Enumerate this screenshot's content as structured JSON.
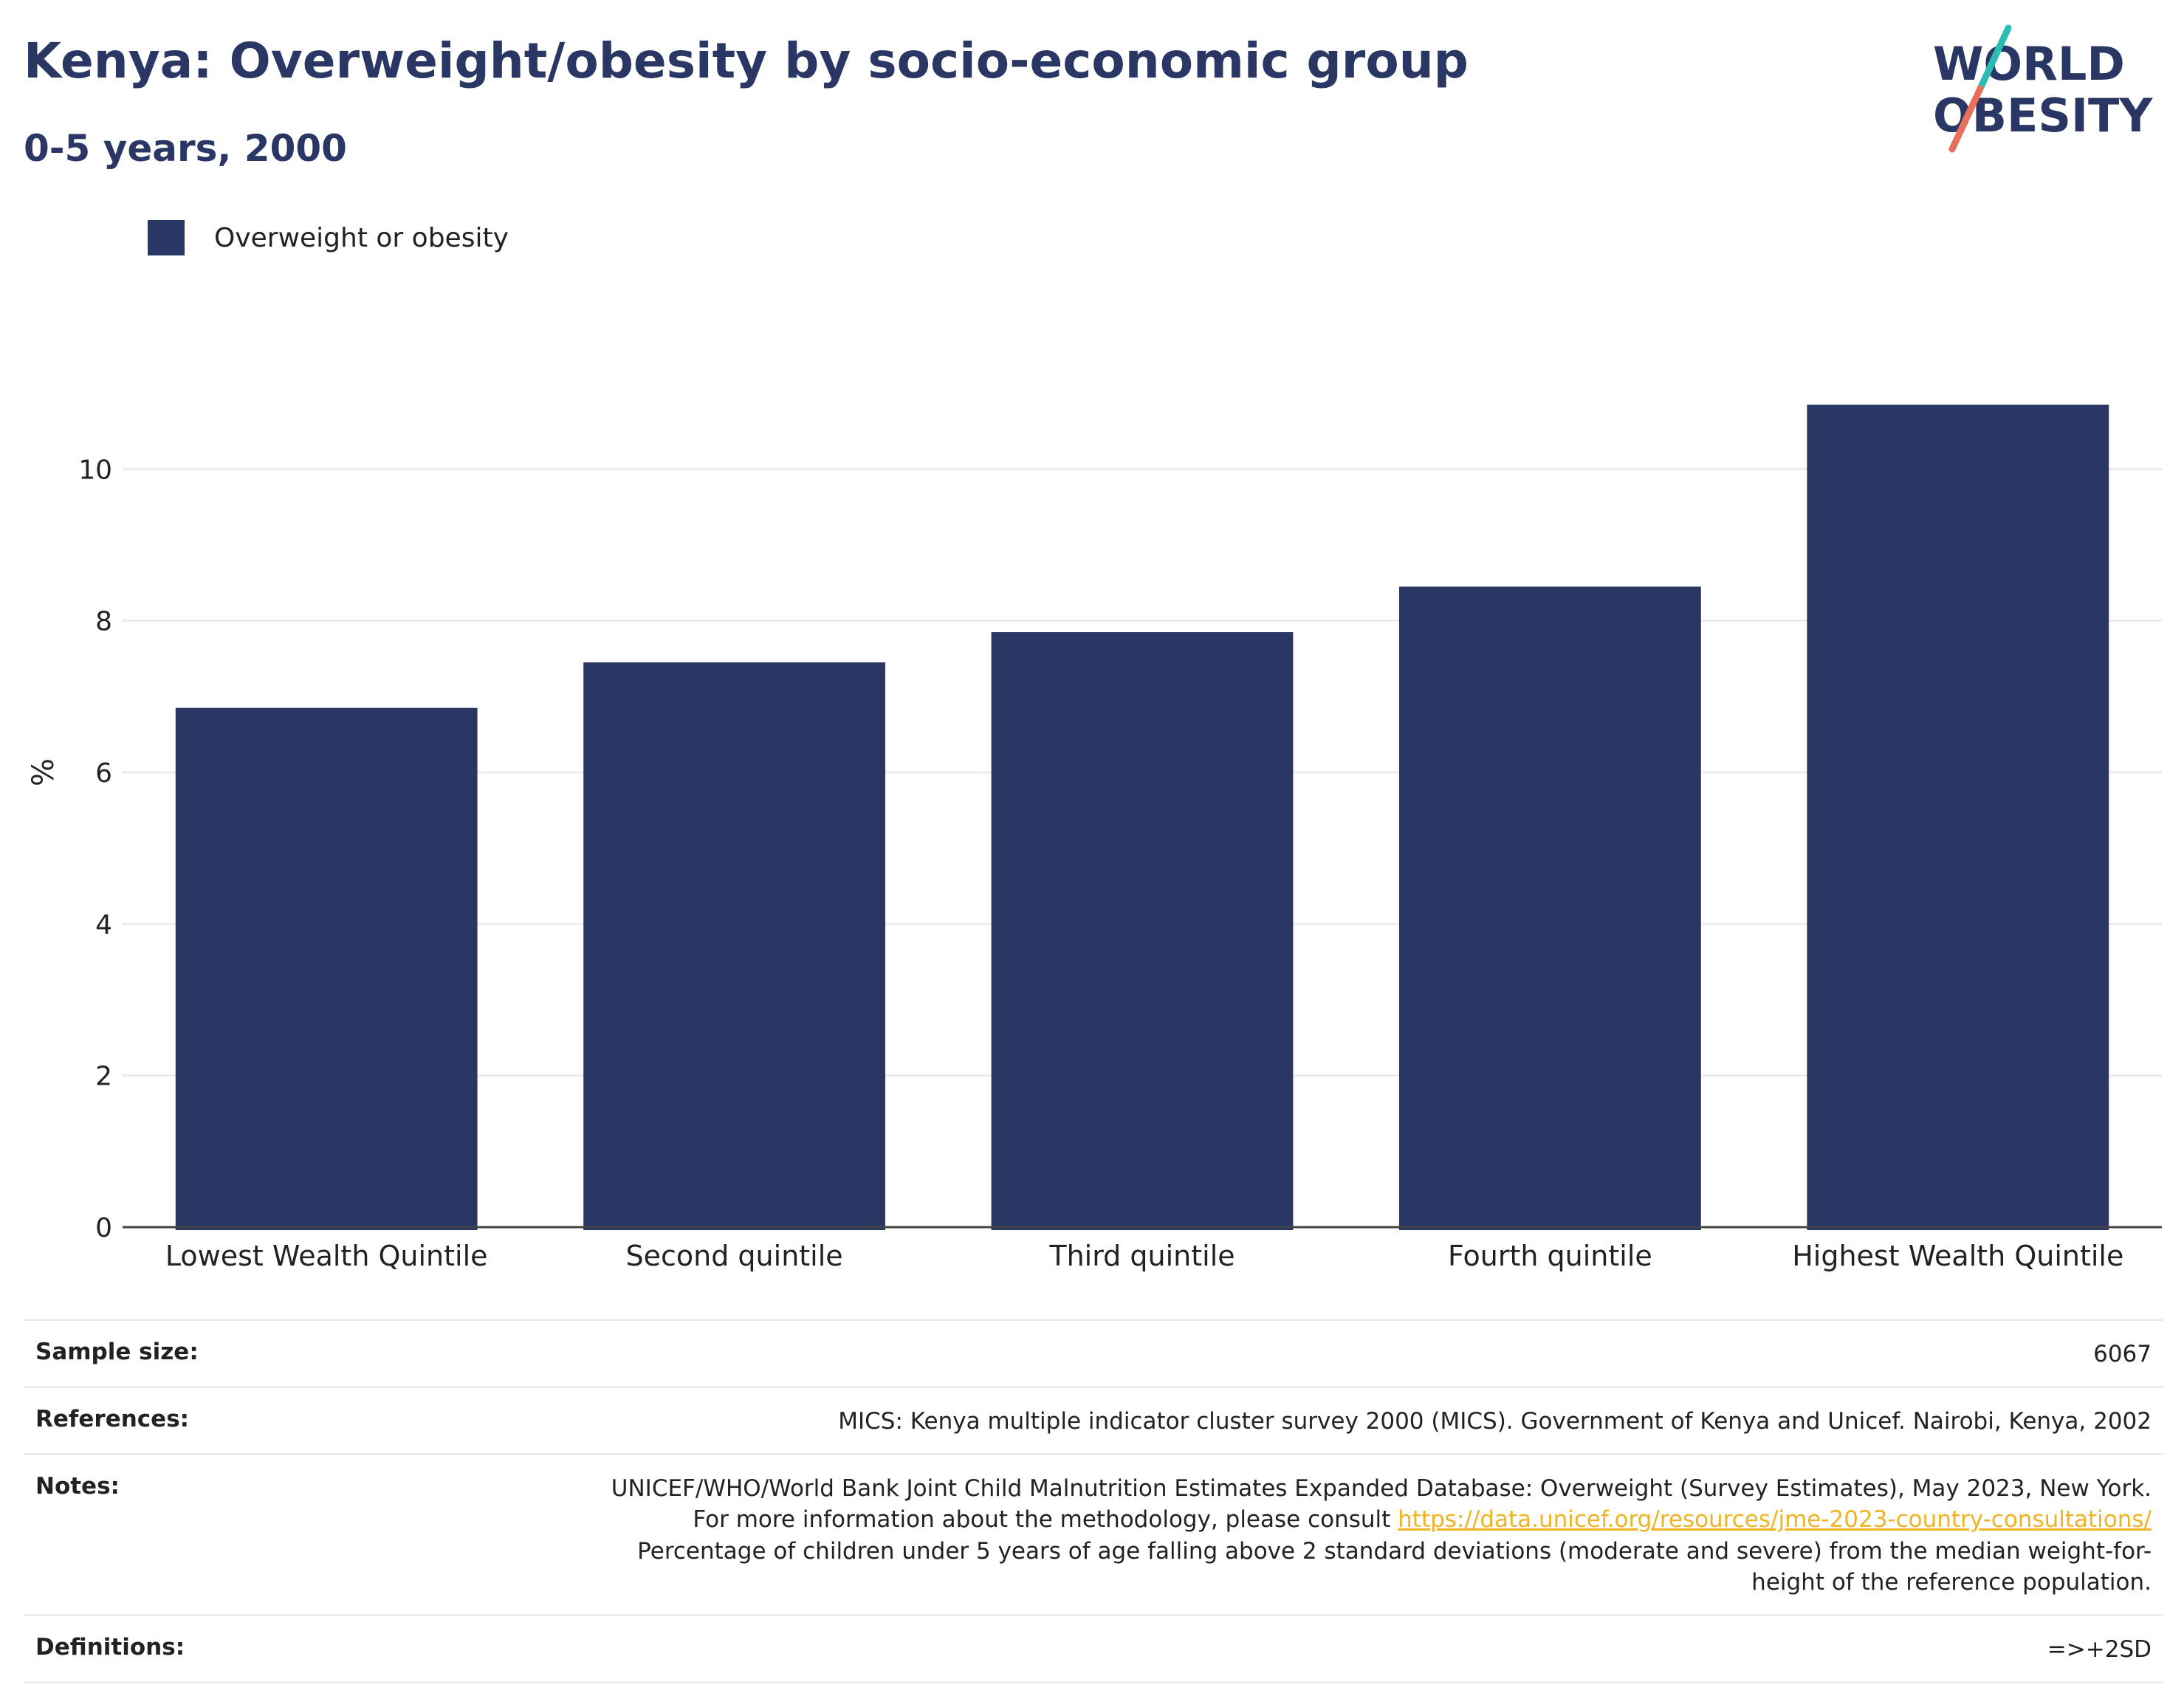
{
  "header": {
    "title": "Kenya: Overweight/obesity by socio-economic group",
    "subtitle": "0-5 years, 2000",
    "logo_line1": "WORLD",
    "logo_line2": "OBESITY"
  },
  "legend": {
    "label": "Overweight or obesity",
    "color": "#2a3764"
  },
  "chart_data": {
    "type": "bar",
    "title": "Kenya: Overweight/obesity by socio-economic group",
    "subtitle": "0-5 years, 2000",
    "categories": [
      "Lowest Wealth Quintile",
      "Second quintile",
      "Third quintile",
      "Fourth quintile",
      "Highest Wealth Quintile"
    ],
    "series": [
      {
        "name": "Overweight or obesity",
        "values": [
          6.85,
          7.45,
          7.85,
          8.45,
          10.85
        ],
        "color": "#2a3764"
      }
    ],
    "xlabel": "",
    "ylabel": "%",
    "ylim": [
      0,
      12
    ],
    "yticks": [
      0,
      2,
      4,
      6,
      8,
      10
    ],
    "grid": true,
    "legend_position": "top-left"
  },
  "footer": {
    "sample_size_label": "Sample size:",
    "sample_size_value": "6067",
    "references_label": "References:",
    "references_value": "MICS: Kenya multiple indicator cluster survey 2000 (MICS). Government of Kenya and Unicef. Nairobi, Kenya, 2002",
    "notes_label": "Notes:",
    "notes_text1": "UNICEF/WHO/World Bank Joint Child Malnutrition Estimates Expanded Database: Overweight (Survey Estimates), May 2023, New York. For more information about the methodology, please consult ",
    "notes_link": "https://data.unicef.org/resources/jme-2023-country-consultations/",
    "notes_text2": "Percentage of children under 5 years of age falling above 2 standard deviations (moderate and severe) from the median weight-for-height of the reference population.",
    "definitions_label": "Definitions:",
    "definitions_value": "=>+2SD"
  },
  "colors": {
    "accent": "#2a3764",
    "logo_teal": "#2bbdb1",
    "logo_coral": "#e8705c",
    "link": "#f0b323"
  }
}
